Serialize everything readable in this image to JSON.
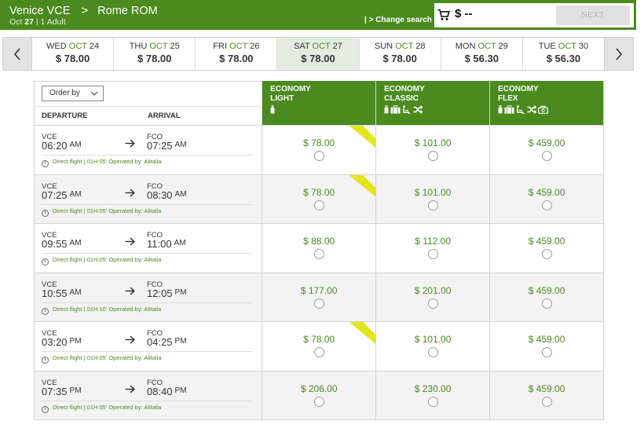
{
  "header": {
    "origin": "Venice VCE",
    "destination": "Rome ROM",
    "date_prefix": "Oct",
    "date_day": "27",
    "passengers": "| 1 Adult",
    "change_search": "| > Change search",
    "cart_total": "$ --",
    "next_label": "NEXT",
    "accent_color": "#4a8a1f"
  },
  "date_strip": [
    {
      "weekday": "WED",
      "month": "OCT",
      "day": "24",
      "price": "$ 78.00",
      "selected": false
    },
    {
      "weekday": "THU",
      "month": "OCT",
      "day": "25",
      "price": "$ 78.00",
      "selected": false
    },
    {
      "weekday": "FRI",
      "month": "OCT",
      "day": "26",
      "price": "$ 78.00",
      "selected": false
    },
    {
      "weekday": "SAT",
      "month": "OCT",
      "day": "27",
      "price": "$ 78.00",
      "selected": true
    },
    {
      "weekday": "SUN",
      "month": "OCT",
      "day": "28",
      "price": "$ 78.00",
      "selected": false
    },
    {
      "weekday": "MON",
      "month": "OCT",
      "day": "29",
      "price": "$ 56.30",
      "selected": false
    },
    {
      "weekday": "TUE",
      "month": "OCT",
      "day": "30",
      "price": "$ 56.30",
      "selected": false
    }
  ],
  "table": {
    "order_by": "Order by",
    "departure_label": "DEPARTURE",
    "arrival_label": "ARRIVAL",
    "fares": [
      {
        "line1": "ECONOMY",
        "line2": "LIGHT",
        "icons": [
          "bag-icon"
        ]
      },
      {
        "line1": "ECONOMY",
        "line2": "CLASSIC",
        "icons": [
          "bag-icon",
          "suitcase-icon",
          "seat-icon",
          "change-icon"
        ]
      },
      {
        "line1": "ECONOMY",
        "line2": "FLEX",
        "icons": [
          "bag-icon",
          "suitcase-icon",
          "seat-icon",
          "change-icon",
          "refund-icon"
        ]
      }
    ]
  },
  "flights": [
    {
      "dep_code": "VCE",
      "dep_time": "06:20",
      "dep_ampm": "AM",
      "arr_code": "FCO",
      "arr_time": "07:25",
      "arr_ampm": "AM",
      "info": "Direct flight | 01H:05' Operated by: Alitalia",
      "prices": [
        "$ 78.00",
        "$ 101.00",
        "$ 459.00"
      ],
      "lowest": true
    },
    {
      "dep_code": "VCE",
      "dep_time": "07:25",
      "dep_ampm": "AM",
      "arr_code": "FCO",
      "arr_time": "08:30",
      "arr_ampm": "AM",
      "info": "Direct flight | 01H:05' Operated by: Alitalia",
      "prices": [
        "$ 78.00",
        "$ 101.00",
        "$ 459.00"
      ],
      "lowest": true
    },
    {
      "dep_code": "VCE",
      "dep_time": "09:55",
      "dep_ampm": "AM",
      "arr_code": "FCO",
      "arr_time": "11:00",
      "arr_ampm": "AM",
      "info": "Direct flight | 01H:05' Operated by: Alitalia",
      "prices": [
        "$ 88.00",
        "$ 112.00",
        "$ 459.00"
      ],
      "lowest": false
    },
    {
      "dep_code": "VCE",
      "dep_time": "10:55",
      "dep_ampm": "AM",
      "arr_code": "FCO",
      "arr_time": "12:05",
      "arr_ampm": "PM",
      "info": "Direct flight | 01H:10' Operated by: Alitalia",
      "prices": [
        "$ 177.00",
        "$ 201.00",
        "$ 459.00"
      ],
      "lowest": false
    },
    {
      "dep_code": "VCE",
      "dep_time": "03:20",
      "dep_ampm": "PM",
      "arr_code": "FCO",
      "arr_time": "04:25",
      "arr_ampm": "PM",
      "info": "Direct flight | 01H:05' Operated by: Alitalia",
      "prices": [
        "$ 78.00",
        "$ 101.00",
        "$ 459.00"
      ],
      "lowest": true
    },
    {
      "dep_code": "VCE",
      "dep_time": "07:35",
      "dep_ampm": "PM",
      "arr_code": "FCO",
      "arr_time": "08:40",
      "arr_ampm": "PM",
      "info": "Direct flight | 01H:05' Operated by: Alitalia",
      "prices": [
        "$ 206.00",
        "$ 230.00",
        "$ 459.00"
      ],
      "lowest": false
    }
  ]
}
